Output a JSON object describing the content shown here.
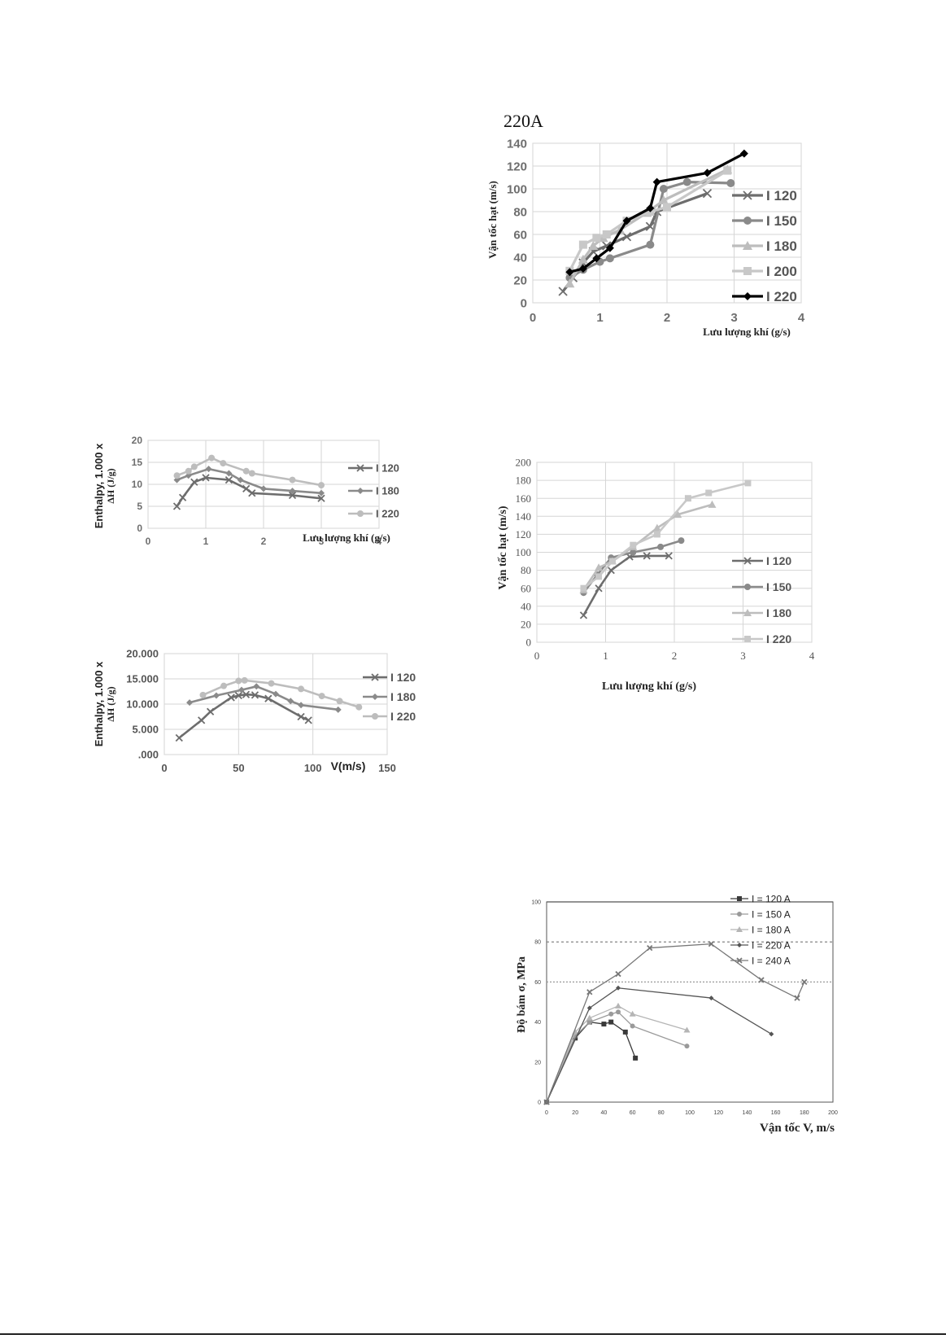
{
  "page": {
    "header_label": "220A"
  },
  "chart_data": [
    {
      "id": "c1",
      "type": "line",
      "title": "",
      "xlabel": "Lưu lượng khí (g/s)",
      "ylabel": "Vận tốc hạt (m/s)",
      "xlim": [
        0,
        4
      ],
      "ylim": [
        0,
        140
      ],
      "xticks": [
        "0",
        "1",
        "2",
        "3",
        "4"
      ],
      "yticks": [
        "0",
        "20",
        "40",
        "60",
        "80",
        "100",
        "120",
        "140"
      ],
      "grid": true,
      "legend": "right",
      "series": [
        {
          "name": "I 120",
          "marker": "x",
          "color": "#6d6d6d",
          "points": [
            [
              0.45,
              10
            ],
            [
              0.6,
              22
            ],
            [
              0.75,
              35
            ],
            [
              0.9,
              45
            ],
            [
              1.1,
              50
            ],
            [
              1.4,
              58
            ],
            [
              1.75,
              67
            ],
            [
              1.85,
              80
            ],
            [
              2.6,
              96
            ]
          ]
        },
        {
          "name": "I 150",
          "marker": "circle",
          "color": "#8a8a8a",
          "points": [
            [
              0.55,
              22
            ],
            [
              0.75,
              29
            ],
            [
              1.0,
              36
            ],
            [
              1.15,
              39
            ],
            [
              1.75,
              51
            ],
            [
              1.95,
              100
            ],
            [
              2.3,
              106
            ],
            [
              2.95,
              105
            ]
          ]
        },
        {
          "name": "I 180",
          "marker": "triangle",
          "color": "#bdbdbd",
          "points": [
            [
              0.55,
              17
            ],
            [
              0.75,
              38
            ],
            [
              0.9,
              50
            ],
            [
              1.05,
              57
            ],
            [
              1.3,
              64
            ],
            [
              1.7,
              79
            ],
            [
              1.95,
              90
            ],
            [
              2.9,
              117
            ]
          ]
        },
        {
          "name": "I 200",
          "marker": "square",
          "color": "#c8c8c8",
          "points": [
            [
              0.55,
              28
            ],
            [
              0.75,
              51
            ],
            [
              0.95,
              57
            ],
            [
              1.1,
              60
            ],
            [
              1.4,
              72
            ],
            [
              1.75,
              80
            ],
            [
              2.0,
              84
            ],
            [
              2.9,
              116
            ]
          ]
        },
        {
          "name": "I 220",
          "marker": "diamond",
          "color": "#000000",
          "points": [
            [
              0.55,
              27
            ],
            [
              0.75,
              30
            ],
            [
              0.95,
              39
            ],
            [
              1.15,
              48
            ],
            [
              1.4,
              72
            ],
            [
              1.75,
              83
            ],
            [
              1.85,
              106
            ],
            [
              2.6,
              114
            ],
            [
              3.15,
              131
            ]
          ]
        }
      ]
    },
    {
      "id": "c2",
      "type": "line",
      "title": "",
      "xlabel": "Lưu lượng khí (g/s)",
      "ylabel": "Enthalpy, 1.000 x ΔH (J/g)",
      "xlim": [
        0,
        4
      ],
      "ylim": [
        0,
        20
      ],
      "xticks": [
        "0",
        "1",
        "2",
        "3",
        "4"
      ],
      "yticks": [
        "0",
        "5",
        "10",
        "15",
        "20"
      ],
      "grid": true,
      "legend": "right",
      "series": [
        {
          "name": "I 120",
          "marker": "x",
          "color": "#6d6d6d",
          "points": [
            [
              0.5,
              5
            ],
            [
              0.6,
              7
            ],
            [
              0.8,
              10.5
            ],
            [
              1.0,
              11.5
            ],
            [
              1.4,
              11
            ],
            [
              1.7,
              9
            ],
            [
              1.8,
              8
            ],
            [
              2.5,
              7.5
            ],
            [
              3.0,
              6.8
            ]
          ]
        },
        {
          "name": "I 180",
          "marker": "diamond",
          "color": "#8a8a8a",
          "points": [
            [
              0.5,
              11
            ],
            [
              0.7,
              12
            ],
            [
              1.05,
              13.5
            ],
            [
              1.4,
              12.5
            ],
            [
              1.6,
              11
            ],
            [
              2.0,
              9
            ],
            [
              2.5,
              8.5
            ],
            [
              3.0,
              8
            ]
          ]
        },
        {
          "name": "I 220",
          "marker": "circle",
          "color": "#bdbdbd",
          "points": [
            [
              0.5,
              12
            ],
            [
              0.7,
              13
            ],
            [
              0.8,
              14
            ],
            [
              1.1,
              16
            ],
            [
              1.3,
              14.8
            ],
            [
              1.7,
              13
            ],
            [
              1.8,
              12.5
            ],
            [
              2.5,
              11
            ],
            [
              3.0,
              9.8
            ]
          ]
        }
      ]
    },
    {
      "id": "c3",
      "type": "line",
      "title": "",
      "xlabel": "V(m/s)",
      "ylabel": "Enthalpy, 1.000 x ΔH (J/g)",
      "xlim": [
        0,
        150
      ],
      "ylim": [
        0,
        20000
      ],
      "xticks": [
        "0",
        "50",
        "100",
        "150"
      ],
      "yticks": [
        ".000",
        "5.000",
        "10.000",
        "15.000",
        "20.000"
      ],
      "grid": true,
      "legend": "right",
      "series": [
        {
          "name": "I 120",
          "marker": "x",
          "color": "#6d6d6d",
          "points": [
            [
              10,
              3300
            ],
            [
              25,
              6800
            ],
            [
              31,
              8500
            ],
            [
              45,
              11300
            ],
            [
              50,
              11700
            ],
            [
              55,
              11900
            ],
            [
              61,
              11800
            ],
            [
              70,
              11100
            ],
            [
              92,
              7500
            ],
            [
              97,
              6800
            ]
          ]
        },
        {
          "name": "I 180",
          "marker": "diamond",
          "color": "#8a8a8a",
          "points": [
            [
              17,
              10300
            ],
            [
              35,
              11700
            ],
            [
              52,
              12800
            ],
            [
              62,
              13500
            ],
            [
              75,
              12000
            ],
            [
              85,
              10600
            ],
            [
              92,
              9800
            ],
            [
              117,
              8900
            ]
          ]
        },
        {
          "name": "I 220",
          "marker": "circle",
          "color": "#bdbdbd",
          "points": [
            [
              26,
              11800
            ],
            [
              40,
              13600
            ],
            [
              50,
              14600
            ],
            [
              54,
              14700
            ],
            [
              72,
              14100
            ],
            [
              92,
              13000
            ],
            [
              106,
              11600
            ],
            [
              118,
              10600
            ],
            [
              131,
              9400
            ]
          ]
        }
      ]
    },
    {
      "id": "c4",
      "type": "line",
      "title": "",
      "xlabel": "Lưu lượng khí (g/s)",
      "ylabel": "Vận tốc hạt (m/s)",
      "xlim": [
        0,
        4
      ],
      "ylim": [
        0,
        200
      ],
      "xticks": [
        "0",
        "1",
        "2",
        "3",
        "4"
      ],
      "yticks": [
        "0",
        "20",
        "40",
        "60",
        "80",
        "100",
        "120",
        "140",
        "160",
        "180",
        "200"
      ],
      "grid": true,
      "legend": "right",
      "series": [
        {
          "name": "I 120",
          "marker": "x",
          "color": "#6d6d6d",
          "points": [
            [
              0.68,
              30
            ],
            [
              0.9,
              60
            ],
            [
              1.08,
              80
            ],
            [
              1.35,
              95
            ],
            [
              1.6,
              96
            ],
            [
              1.92,
              96
            ]
          ]
        },
        {
          "name": "I 150",
          "marker": "circle",
          "color": "#8a8a8a",
          "points": [
            [
              0.68,
              55
            ],
            [
              0.88,
              75
            ],
            [
              1.08,
              94
            ],
            [
              1.4,
              100
            ],
            [
              1.8,
              106
            ],
            [
              2.1,
              113
            ]
          ]
        },
        {
          "name": "I 180",
          "marker": "triangle",
          "color": "#bdbdbd",
          "points": [
            [
              0.68,
              58
            ],
            [
              0.9,
              83
            ],
            [
              1.1,
              90
            ],
            [
              1.4,
              106
            ],
            [
              1.75,
              127
            ],
            [
              2.05,
              142
            ],
            [
              2.55,
              153
            ]
          ]
        },
        {
          "name": "I 220",
          "marker": "square",
          "color": "#c8c8c8",
          "points": [
            [
              0.68,
              60
            ],
            [
              0.9,
              73
            ],
            [
              1.1,
              90
            ],
            [
              1.4,
              108
            ],
            [
              1.75,
              120
            ],
            [
              2.2,
              160
            ],
            [
              2.5,
              166
            ],
            [
              3.07,
              177
            ]
          ]
        }
      ]
    },
    {
      "id": "c5",
      "type": "line",
      "title": "",
      "xlabel": "Vận tốc V, m/s",
      "ylabel": "Độ bám σ, MPa",
      "xlim": [
        0,
        200
      ],
      "ylim": [
        0,
        100
      ],
      "xticks": [
        "0",
        "20",
        "40",
        "60",
        "80",
        "100",
        "120",
        "140",
        "160",
        "180",
        "200"
      ],
      "yticks": [
        "0",
        "20",
        "40",
        "60",
        "80",
        "100"
      ],
      "grid": false,
      "legend": "top-right",
      "series": [
        {
          "name": "I = 120 A",
          "marker": "square",
          "color": "#3a3a3a",
          "points": [
            [
              0,
              0
            ],
            [
              20,
              32
            ],
            [
              30,
              40
            ],
            [
              40,
              39
            ],
            [
              45,
              40
            ],
            [
              55,
              35
            ],
            [
              62,
              22
            ]
          ]
        },
        {
          "name": "I = 150 A",
          "marker": "circle",
          "color": "#9a9a9a",
          "points": [
            [
              0,
              0
            ],
            [
              20,
              33
            ],
            [
              30,
              40
            ],
            [
              45,
              44
            ],
            [
              50,
              45
            ],
            [
              60,
              38
            ],
            [
              98,
              28
            ]
          ]
        },
        {
          "name": "I = 180 A",
          "marker": "triangle",
          "color": "#b5b5b5",
          "points": [
            [
              0,
              0
            ],
            [
              20,
              35
            ],
            [
              30,
              42
            ],
            [
              50,
              48
            ],
            [
              60,
              44
            ],
            [
              98,
              36
            ]
          ]
        },
        {
          "name": "I = 220 A",
          "marker": "diamond",
          "color": "#555555",
          "points": [
            [
              0,
              0
            ],
            [
              30,
              47
            ],
            [
              50,
              57
            ],
            [
              115,
              52
            ],
            [
              157,
              34
            ]
          ]
        },
        {
          "name": "I = 240 A",
          "marker": "x",
          "color": "#777777",
          "points": [
            [
              0,
              0
            ],
            [
              30,
              55
            ],
            [
              50,
              64
            ],
            [
              72,
              77
            ],
            [
              115,
              79
            ],
            [
              150,
              61
            ],
            [
              175,
              52
            ],
            [
              180,
              60
            ]
          ]
        }
      ]
    }
  ]
}
